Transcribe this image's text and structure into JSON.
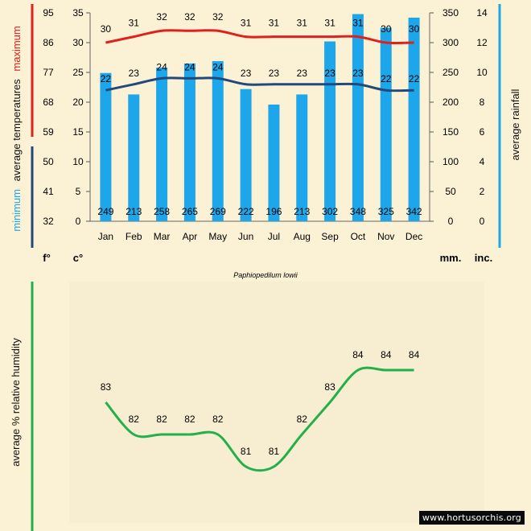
{
  "chart_data": [
    {
      "type": "bar+line",
      "title": "Paphiopedilum lowii",
      "categories": [
        "Jan",
        "Feb",
        "Mar",
        "Apr",
        "May",
        "Jun",
        "Jul",
        "Aug",
        "Sep",
        "Oct",
        "Nov",
        "Dec"
      ],
      "rainfall_mm": [
        249,
        213,
        258,
        265,
        269,
        222,
        196,
        213,
        302,
        348,
        325,
        342
      ],
      "max_temp_c": [
        30,
        31,
        32,
        32,
        32,
        31,
        31,
        31,
        31,
        31,
        30,
        30
      ],
      "min_temp_c": [
        22,
        23,
        24,
        24,
        24,
        23,
        23,
        23,
        23,
        23,
        22,
        22
      ],
      "axes": {
        "fahrenheit_ticks": [
          95,
          86,
          77,
          68,
          59,
          50,
          41,
          32
        ],
        "celsius_ticks": [
          35,
          30,
          25,
          20,
          15,
          10,
          5,
          0
        ],
        "mm_ticks": [
          350,
          300,
          250,
          200,
          150,
          100,
          50,
          0
        ],
        "inch_ticks": [
          14,
          12,
          10,
          8,
          6,
          4,
          2,
          0
        ],
        "celsius_range": [
          0,
          35
        ],
        "rainfall_range_mm": [
          0,
          350
        ]
      },
      "unit_labels": {
        "f": "f°",
        "c": "c°",
        "mm": "mm.",
        "inc": "inc."
      },
      "left_label": {
        "minimum": "minimum",
        "average_temperatures": "average  temperatures",
        "maximum": "maximum"
      },
      "right_label": "average rainfall",
      "colors": {
        "bars": "#1ea6ea",
        "max_line": "#e0201c",
        "min_line": "#21497c",
        "rain_axis": "#1ea6ea",
        "max_axis": "#e0201c",
        "min_axis": "#21497c"
      }
    },
    {
      "type": "line",
      "title": "average % relative humidity",
      "categories": [
        "Jan",
        "Feb",
        "Mar",
        "Apr",
        "May",
        "Jun",
        "Jul",
        "Aug",
        "Sep",
        "Oct",
        "Nov",
        "Dec"
      ],
      "values": [
        83,
        82,
        82,
        82,
        82,
        81,
        81,
        82,
        83,
        84,
        84,
        84
      ],
      "ylim": [
        79,
        86
      ],
      "colors": {
        "line": "#22b04a",
        "axis": "#22b04a"
      }
    }
  ],
  "watermark": "www.hortusorchis.org"
}
